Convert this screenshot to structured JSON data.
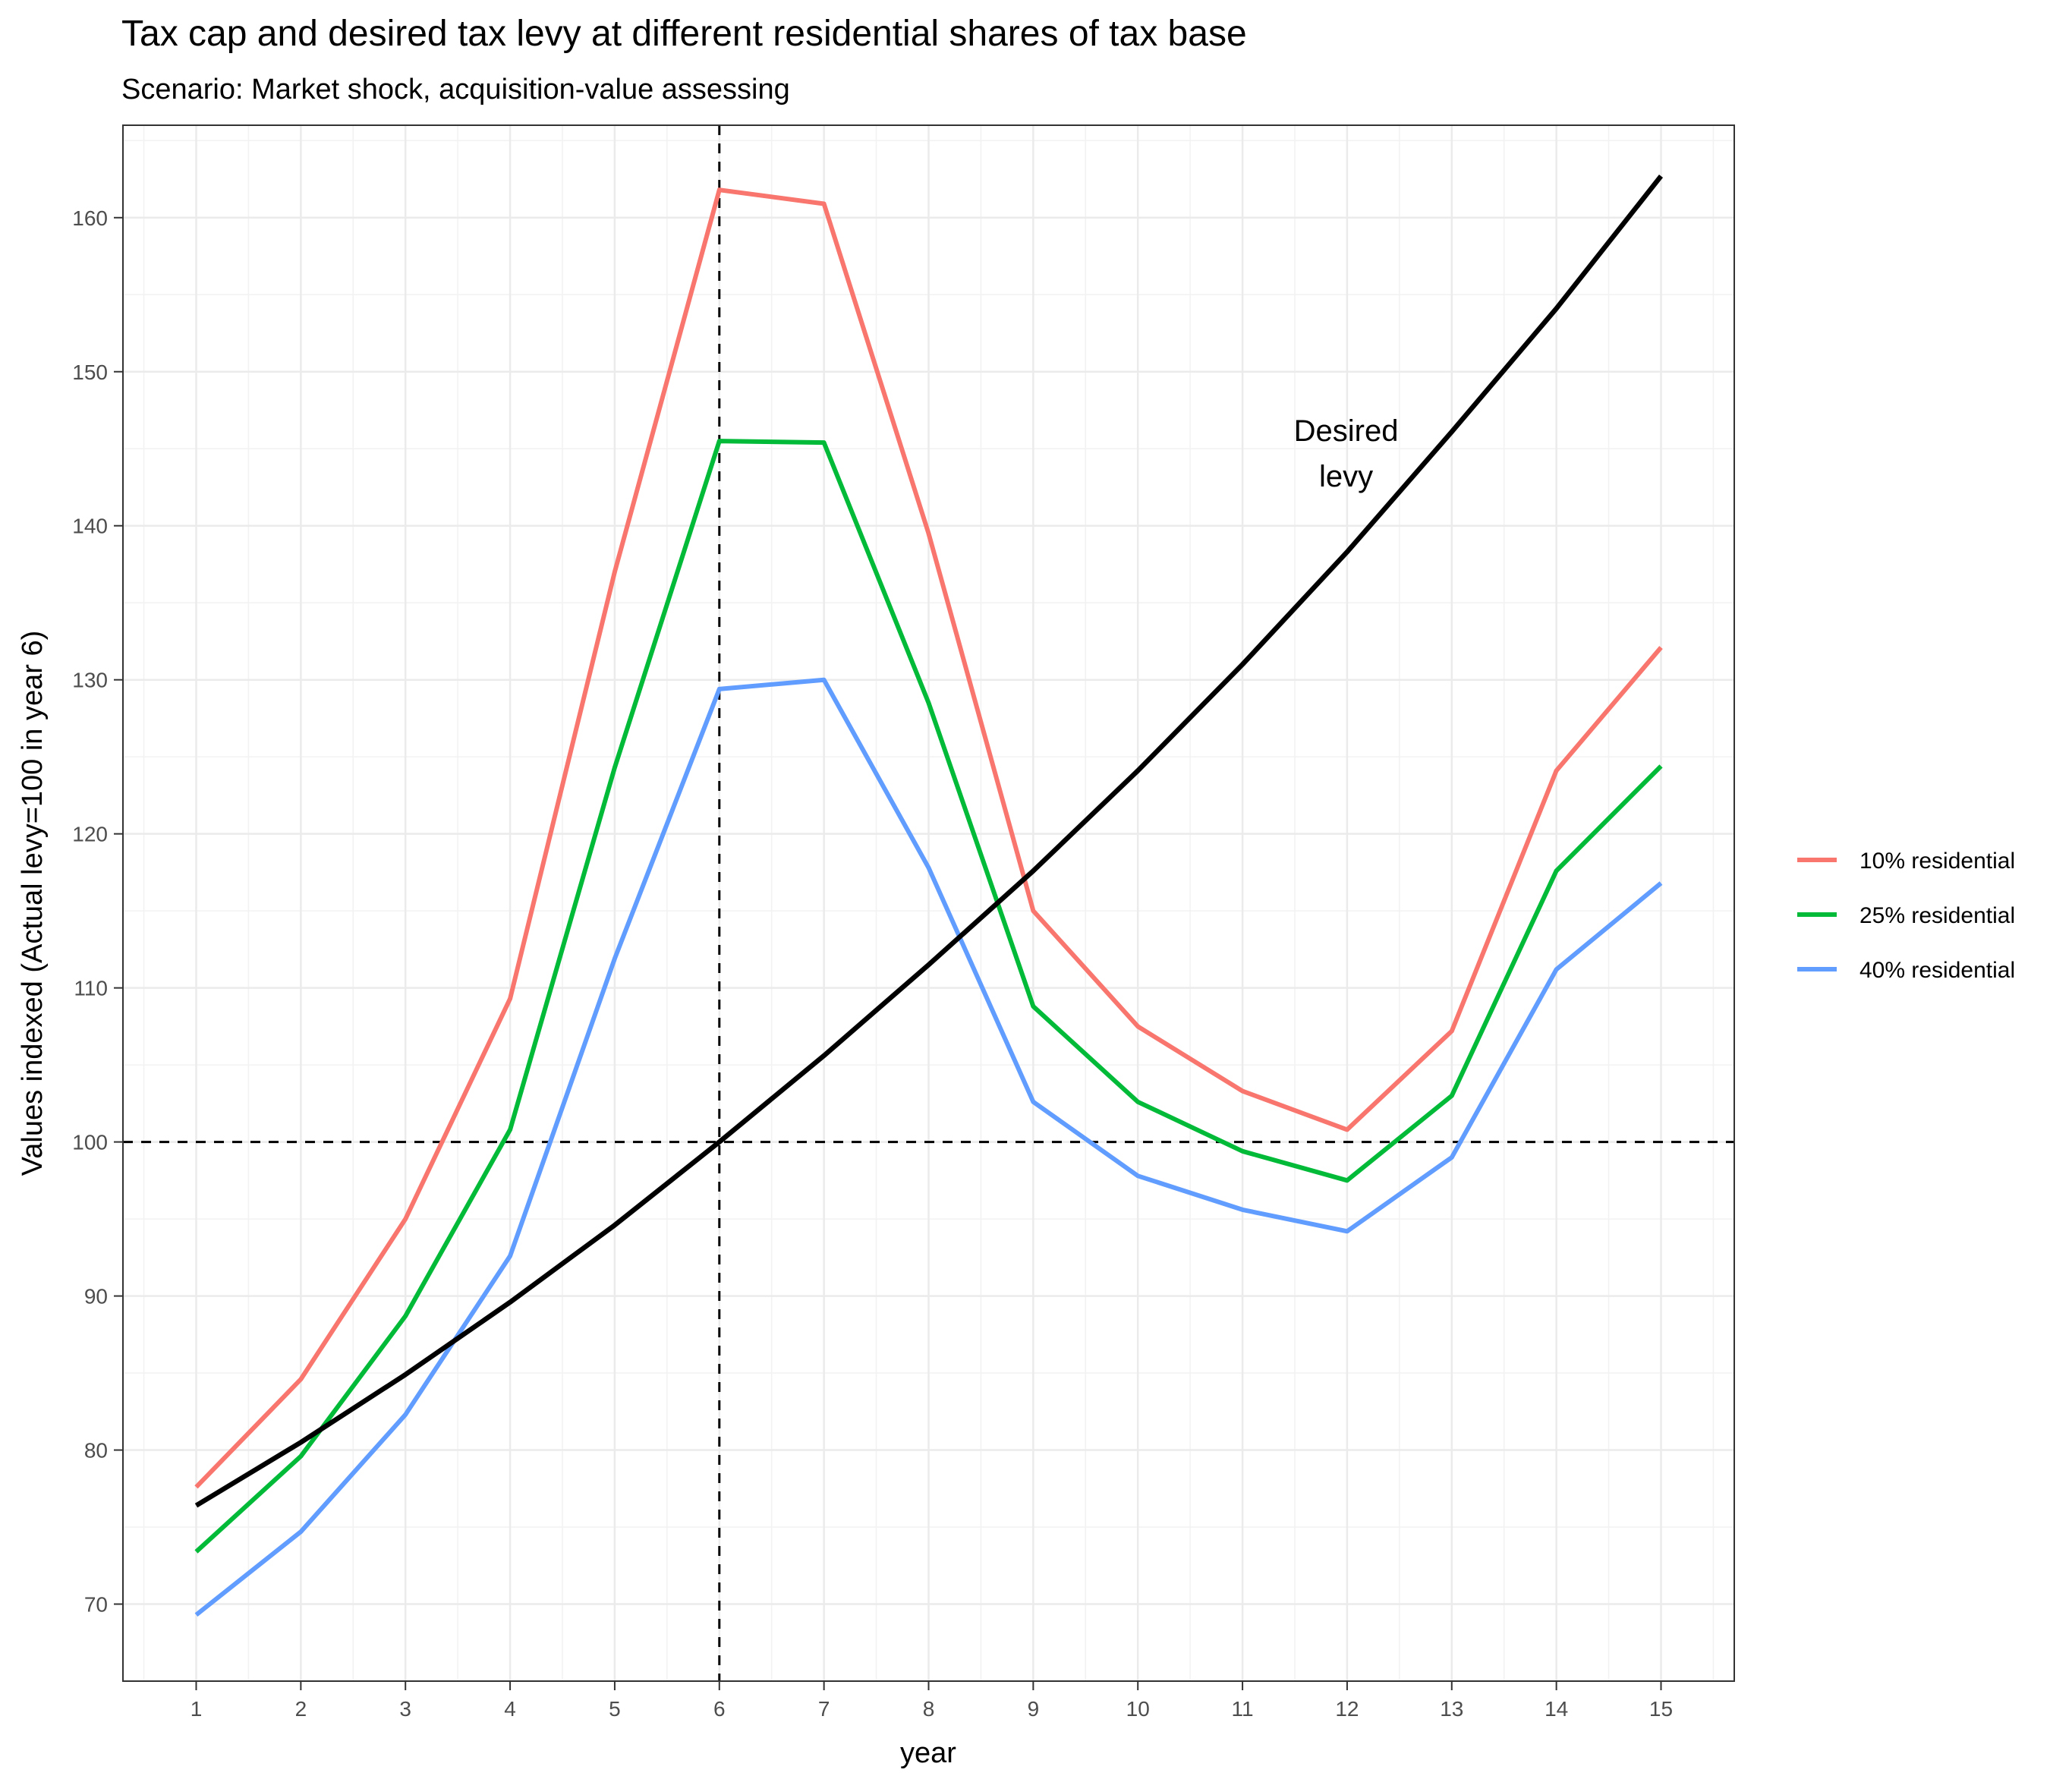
{
  "chart_data": {
    "type": "line",
    "title": "Tax cap and desired tax levy at different residential shares of tax base",
    "subtitle": "Scenario: Market shock, acquisition-value assessing",
    "xlabel": "year",
    "ylabel": "Values indexed (Actual levy=100 in year 6)",
    "x": [
      1,
      2,
      3,
      4,
      5,
      6,
      7,
      8,
      9,
      10,
      11,
      12,
      13,
      14,
      15
    ],
    "xlim": [
      0.3,
      15.7
    ],
    "ylim": [
      65,
      166
    ],
    "x_ticks": [
      1,
      2,
      3,
      4,
      5,
      6,
      7,
      8,
      9,
      10,
      11,
      12,
      13,
      14,
      15
    ],
    "y_ticks": [
      70,
      80,
      90,
      100,
      110,
      120,
      130,
      140,
      150,
      160
    ],
    "grid": true,
    "legend_position": "right",
    "series": [
      {
        "name": "10% residential",
        "color": "#F8766D",
        "values": [
          77.6,
          84.6,
          95.0,
          109.3,
          137.0,
          161.8,
          160.9,
          139.5,
          115.0,
          107.5,
          103.3,
          100.8,
          107.2,
          124.1,
          132.1
        ]
      },
      {
        "name": "25% residential",
        "color": "#00BA38",
        "values": [
          73.4,
          79.6,
          88.7,
          100.8,
          124.3,
          145.5,
          145.4,
          128.5,
          108.8,
          102.6,
          99.4,
          97.5,
          103.0,
          117.6,
          124.4
        ]
      },
      {
        "name": "40% residential",
        "color": "#619CFF",
        "values": [
          69.3,
          74.7,
          82.3,
          92.6,
          111.9,
          129.4,
          130.0,
          117.8,
          102.6,
          97.8,
          95.6,
          94.2,
          99.0,
          111.2,
          116.8
        ]
      },
      {
        "name": "",
        "color": "#000000",
        "values": [
          76.4,
          80.5,
          84.9,
          89.6,
          94.6,
          100.0,
          105.6,
          111.5,
          117.6,
          124.1,
          131.0,
          138.3,
          146.1,
          154.1,
          162.7
        ]
      }
    ],
    "reference_lines": {
      "vertical_x": 6,
      "horizontal_y": 100
    },
    "annotation": {
      "lines": [
        "Desired",
        "levy"
      ],
      "x": 11.99,
      "y": 145.5
    }
  }
}
